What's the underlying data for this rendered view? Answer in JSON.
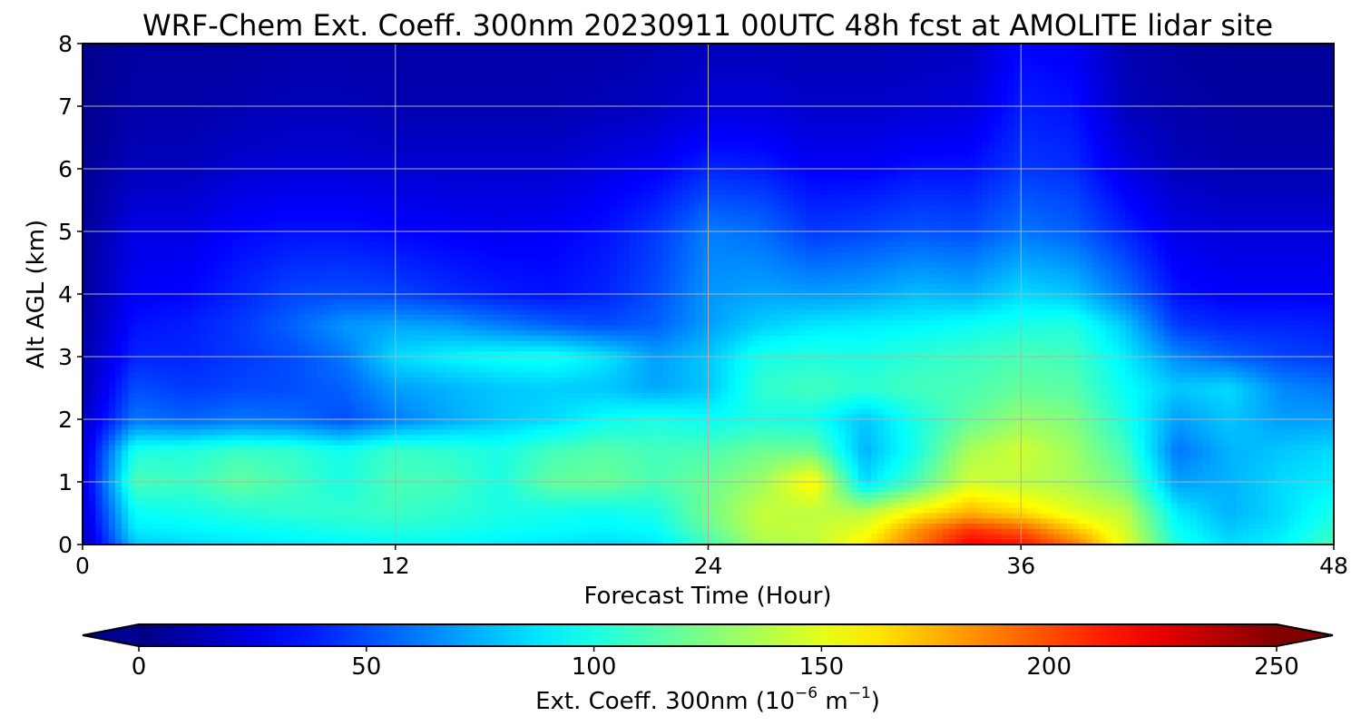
{
  "chart_data": {
    "type": "heatmap",
    "title": "WRF-Chem Ext. Coeff. 300nm  20230911 00UTC 48h fcst at AMOLITE lidar site",
    "xlabel": "Forecast Time (Hour)",
    "ylabel": "Alt AGL (km)",
    "xlim": [
      0,
      48
    ],
    "ylim": [
      0,
      8
    ],
    "x_ticks": [
      "0",
      "12",
      "24",
      "36",
      "48"
    ],
    "x_tick_values": [
      0,
      12,
      24,
      36,
      48
    ],
    "y_ticks": [
      "0",
      "1",
      "2",
      "3",
      "4",
      "5",
      "6",
      "7",
      "8"
    ],
    "y_tick_values": [
      0,
      1,
      2,
      3,
      4,
      5,
      6,
      7,
      8
    ],
    "grid": true,
    "colormap": "jet",
    "colorbar": {
      "label_prefix": "Ext. Coeff. 300nm  (10",
      "label_exp1": "−6",
      "label_mid": " m",
      "label_exp2": "−1",
      "label_suffix": ")",
      "range": [
        0,
        250
      ],
      "ticks": [
        "0",
        "50",
        "100",
        "150",
        "200",
        "250"
      ],
      "tick_values": [
        0,
        50,
        100,
        150,
        200,
        250
      ],
      "extend": "both",
      "orientation": "horizontal",
      "location": "bottom"
    },
    "grid_x": [
      0,
      2,
      4,
      6,
      8,
      10,
      12,
      14,
      16,
      18,
      20,
      22,
      24,
      26,
      28,
      30,
      32,
      34,
      36,
      38,
      40,
      42,
      44,
      46,
      48
    ],
    "grid_y": [
      0,
      0.25,
      0.5,
      1,
      1.5,
      2,
      2.5,
      3,
      3.5,
      4,
      5,
      6,
      7,
      8
    ],
    "values": [
      [
        10,
        80,
        85,
        88,
        90,
        92,
        95,
        95,
        90,
        88,
        85,
        88,
        110,
        135,
        140,
        160,
        190,
        220,
        215,
        190,
        150,
        100,
        85,
        92,
        112
      ],
      [
        15,
        90,
        92,
        95,
        97,
        100,
        102,
        100,
        97,
        95,
        92,
        95,
        118,
        140,
        142,
        150,
        182,
        205,
        195,
        170,
        145,
        95,
        80,
        88,
        105
      ],
      [
        18,
        95,
        98,
        102,
        105,
        106,
        108,
        105,
        100,
        98,
        96,
        100,
        122,
        142,
        140,
        140,
        160,
        175,
        165,
        150,
        140,
        90,
        75,
        85,
        100
      ],
      [
        20,
        112,
        108,
        118,
        110,
        100,
        112,
        110,
        100,
        118,
        120,
        112,
        120,
        132,
        160,
        85,
        112,
        145,
        140,
        135,
        120,
        70,
        75,
        85,
        90
      ],
      [
        18,
        100,
        102,
        108,
        106,
        98,
        108,
        105,
        100,
        110,
        115,
        110,
        112,
        120,
        120,
        75,
        100,
        135,
        145,
        132,
        110,
        60,
        75,
        80,
        85
      ],
      [
        15,
        60,
        55,
        60,
        58,
        50,
        62,
        72,
        80,
        85,
        95,
        100,
        95,
        100,
        98,
        80,
        100,
        118,
        130,
        125,
        100,
        70,
        80,
        70,
        70
      ],
      [
        12,
        50,
        45,
        48,
        50,
        55,
        70,
        75,
        80,
        82,
        80,
        72,
        80,
        105,
        110,
        105,
        110,
        112,
        118,
        115,
        95,
        80,
        85,
        65,
        60
      ],
      [
        10,
        40,
        40,
        45,
        50,
        60,
        85,
        92,
        96,
        98,
        88,
        70,
        80,
        100,
        102,
        100,
        105,
        108,
        112,
        110,
        90,
        65,
        55,
        48,
        45
      ],
      [
        8,
        35,
        38,
        45,
        55,
        68,
        72,
        70,
        62,
        55,
        50,
        55,
        70,
        82,
        88,
        90,
        92,
        96,
        100,
        102,
        80,
        45,
        40,
        40,
        38
      ],
      [
        6,
        30,
        32,
        40,
        48,
        50,
        48,
        42,
        38,
        35,
        40,
        50,
        68,
        72,
        70,
        72,
        78,
        75,
        85,
        80,
        60,
        35,
        30,
        30,
        30
      ],
      [
        5,
        25,
        25,
        32,
        35,
        35,
        32,
        30,
        28,
        30,
        35,
        45,
        62,
        58,
        45,
        48,
        52,
        50,
        60,
        55,
        40,
        25,
        22,
        22,
        22
      ],
      [
        4,
        15,
        15,
        20,
        22,
        22,
        20,
        20,
        20,
        20,
        25,
        30,
        40,
        38,
        30,
        30,
        35,
        35,
        45,
        42,
        25,
        15,
        12,
        12,
        12
      ],
      [
        3,
        10,
        10,
        12,
        14,
        14,
        12,
        12,
        12,
        12,
        14,
        16,
        22,
        22,
        18,
        18,
        20,
        22,
        38,
        35,
        15,
        10,
        8,
        8,
        8
      ],
      [
        3,
        8,
        8,
        8,
        10,
        10,
        10,
        10,
        10,
        10,
        10,
        12,
        14,
        14,
        12,
        12,
        14,
        15,
        32,
        28,
        12,
        8,
        6,
        6,
        6
      ]
    ]
  }
}
